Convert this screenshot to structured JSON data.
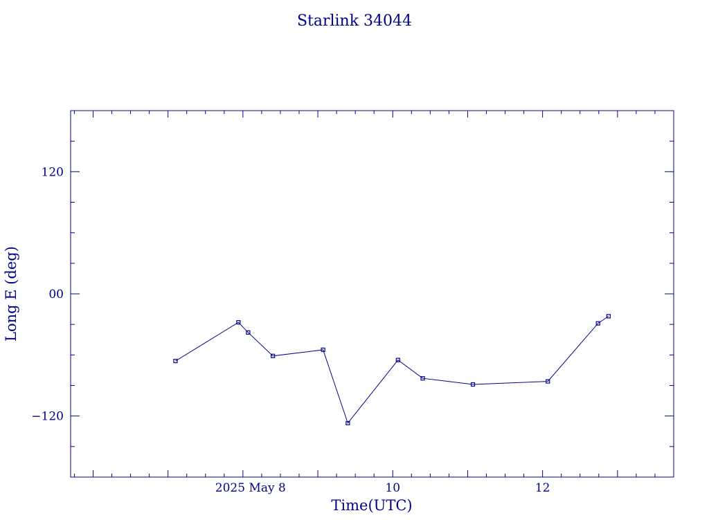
{
  "colors": {
    "ink": "#00008b",
    "background": "#ffffff"
  },
  "chart_data": {
    "type": "line",
    "title": "Starlink 34044",
    "xlabel": "Time(UTC)",
    "ylabel": "Long E (deg)",
    "x_unit": "day of 2025 May",
    "xlim": [
      5.7,
      13.75
    ],
    "ylim": [
      -180,
      180
    ],
    "x_ticks": [
      {
        "value": 8,
        "label": "2025 May  8"
      },
      {
        "value": 10,
        "label": "10"
      },
      {
        "value": 12,
        "label": "12"
      }
    ],
    "y_ticks": [
      {
        "value": 120,
        "label": "120"
      },
      {
        "value": 0,
        "label": "00"
      },
      {
        "value": -120,
        "label": "−120"
      }
    ],
    "grid": false,
    "marker": "square",
    "series": [
      {
        "x": [
          7.1,
          7.94,
          8.07,
          8.4,
          9.07,
          9.4,
          10.07,
          10.4,
          11.07,
          12.07,
          12.74,
          12.88
        ],
        "y": [
          -66,
          -28,
          -38,
          -61,
          -55,
          -127,
          -65,
          -83,
          -89,
          -86,
          -29,
          -22
        ]
      }
    ]
  }
}
